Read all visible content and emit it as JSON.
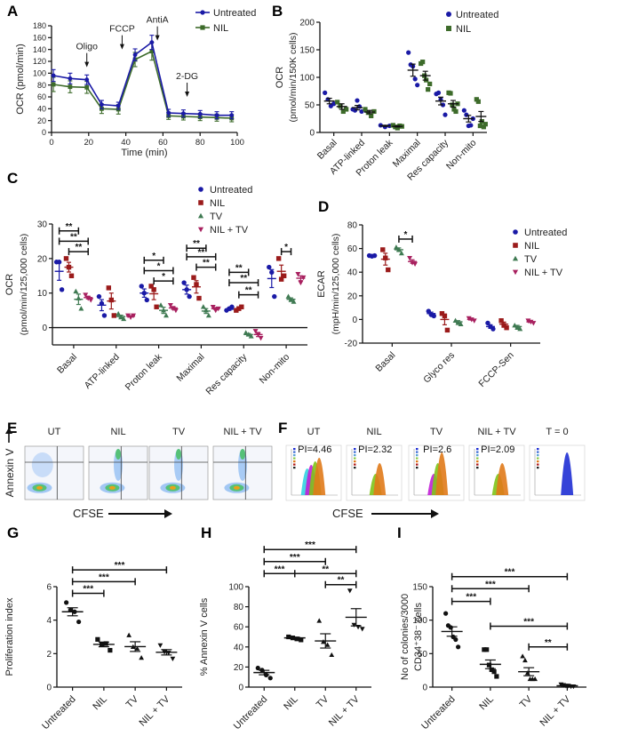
{
  "figure": {
    "panel_labels": [
      "A",
      "B",
      "C",
      "D",
      "E",
      "F",
      "G",
      "H",
      "I"
    ]
  },
  "colors": {
    "untreated": "#1a1aa6",
    "nil_green": "#3d6b2a",
    "nil_red": "#9b1b1b",
    "tv": "#3f7a52",
    "nil_tv": "#a8205f",
    "black": "#111111"
  },
  "chart_data": [
    {
      "id": "A",
      "type": "line",
      "xlabel": "Time (min)",
      "ylabel": "OCR (pmol/min)",
      "xlim": [
        0,
        100
      ],
      "ylim": [
        0,
        180
      ],
      "xticks": [
        0,
        20,
        40,
        60,
        80,
        100
      ],
      "yticks": [
        0,
        20,
        40,
        60,
        80,
        100,
        120,
        140,
        160,
        180
      ],
      "x": [
        1,
        10,
        19,
        27,
        36,
        45,
        54,
        63,
        71,
        80,
        89,
        97
      ],
      "series": [
        {
          "name": "Untreated",
          "color_key": "untreated",
          "marker": "circle",
          "values": [
            96,
            91,
            89,
            47,
            45,
            131,
            152,
            33,
            32,
            31,
            29,
            29
          ],
          "errors": [
            10,
            9,
            8,
            7,
            6,
            10,
            12,
            6,
            6,
            6,
            6,
            6
          ]
        },
        {
          "name": "NIL",
          "color_key": "nil_green",
          "marker": "square",
          "values": [
            81,
            77,
            76,
            40,
            39,
            123,
            137,
            28,
            27,
            26,
            25,
            24
          ],
          "errors": [
            12,
            10,
            10,
            8,
            8,
            12,
            15,
            6,
            6,
            6,
            6,
            6
          ]
        }
      ],
      "annotations": [
        {
          "text": "Oligo",
          "x": 19,
          "arrow_to": 110
        },
        {
          "text": "FCCP",
          "x": 38,
          "arrow_to": 140
        },
        {
          "text": "AntiA",
          "x": 57,
          "arrow_to": 155
        },
        {
          "text": "2-DG",
          "x": 73,
          "arrow_to": 60
        }
      ],
      "legend": {
        "position": "top-right",
        "entries": [
          "Untreated",
          "NIL"
        ]
      }
    },
    {
      "id": "B",
      "type": "scatter",
      "ylabel": "OCR",
      "ylabel2": "(pmol/min/150K cells)",
      "ylim": [
        0,
        200
      ],
      "yticks": [
        0,
        50,
        100,
        150,
        200
      ],
      "categories": [
        "Basal",
        "ATP-linked",
        "Proton leak",
        "Maximal",
        "Res capacity",
        "Non-mito"
      ],
      "series": [
        {
          "name": "Untreated",
          "color_key": "untreated",
          "marker": "circle",
          "points": [
            [
              72,
              60,
              48,
              52
            ],
            [
              42,
              40,
              58,
              47,
              38
            ],
            [
              13,
              10,
              12
            ],
            [
              145,
              123,
              120,
              97,
              86
            ],
            [
              70,
              72,
              60,
              50,
              32
            ],
            [
              40,
              32,
              12,
              13,
              25
            ]
          ],
          "mean": [
            57,
            45,
            12,
            113,
            57,
            25
          ],
          "sem": [
            5,
            4,
            1,
            11,
            7,
            6
          ]
        },
        {
          "name": "NIL",
          "color_key": "nil_green",
          "marker": "square",
          "points": [
            [
              55,
              48,
              38,
              42
            ],
            [
              42,
              36,
              30,
              38
            ],
            [
              13,
              10,
              8,
              12,
              11
            ],
            [
              125,
              128,
              103,
              95,
              78,
              88
            ],
            [
              72,
              71,
              50,
              42,
              38,
              52
            ],
            [
              60,
              56,
              12,
              20,
              10,
              15
            ]
          ],
          "mean": [
            47,
            37,
            11,
            103,
            52,
            29
          ],
          "sem": [
            5,
            3,
            1,
            8,
            6,
            9
          ]
        }
      ],
      "legend": {
        "position": "top-right",
        "entries": [
          "Untreated",
          "NIL"
        ]
      }
    },
    {
      "id": "C",
      "type": "scatter",
      "ylabel": "OCR",
      "ylabel2": "(pmol/min/125,000 cells)",
      "ylim": [
        -5,
        30
      ],
      "yticks": [
        0,
        10,
        20,
        30
      ],
      "categories": [
        "Basal",
        "ATP-linked",
        "Proton leak",
        "Maximal",
        "Res capacity",
        "Non-mito"
      ],
      "series": [
        {
          "name": "Untreated",
          "color_key": "untreated",
          "marker": "circle",
          "points": [
            [
              19,
              19,
              11
            ],
            [
              9,
              7,
              3.5
            ],
            [
              12,
              10,
              8
            ],
            [
              13,
              11,
              9
            ],
            [
              5,
              5.5,
              6
            ],
            [
              17.5,
              16,
              9
            ]
          ],
          "mean": [
            16.3,
            6.5,
            10,
            11,
            5.3,
            14.2
          ],
          "sem": [
            2.6,
            1.6,
            1.2,
            1.3,
            0.3,
            2.6
          ]
        },
        {
          "name": "NIL",
          "color_key": "nil_red",
          "marker": "square",
          "points": [
            [
              20,
              17.5,
              15
            ],
            [
              11.5,
              8,
              3.5
            ],
            [
              12,
              11,
              6
            ],
            [
              14.5,
              12.5,
              8.5
            ],
            [
              5,
              5.5,
              6
            ],
            [
              20,
              14,
              15
            ]
          ],
          "mean": [
            17.5,
            7.7,
            9.8,
            11.8,
            5.5,
            16.3
          ],
          "sem": [
            1.4,
            2.3,
            1.7,
            1.8,
            0.3,
            1.8
          ]
        },
        {
          "name": "TV",
          "color_key": "tv",
          "marker": "triangle",
          "points": [
            [
              10.5,
              8.5,
              5.5
            ],
            [
              4,
              3,
              2.5
            ],
            [
              6.5,
              5,
              3.5
            ],
            [
              6,
              5,
              3.5
            ],
            [
              -1.5,
              -2,
              -2.5
            ],
            [
              9,
              8,
              7.5
            ]
          ],
          "mean": [
            8.2,
            3.2,
            5,
            4.8,
            -2,
            8.2
          ],
          "sem": [
            1.5,
            0.4,
            0.9,
            0.7,
            0.3,
            0.4
          ]
        },
        {
          "name": "NIL + TV",
          "color_key": "nil_tv",
          "marker": "triangle-down",
          "points": [
            [
              9.5,
              8.5,
              8
            ],
            [
              3.5,
              3,
              3.5
            ],
            [
              6.5,
              5.5,
              5
            ],
            [
              6,
              5,
              5.5
            ],
            [
              -1,
              -2,
              -3
            ],
            [
              15.5,
              13,
              14.5
            ]
          ],
          "mean": [
            8.7,
            3.3,
            5.7,
            5.5,
            -2,
            14.3
          ],
          "sem": [
            0.4,
            0.2,
            0.4,
            0.3,
            0.6,
            0.7
          ]
        }
      ],
      "significance": [
        {
          "cat": 0,
          "from": 0,
          "to": 2,
          "level": 28,
          "label": "**"
        },
        {
          "cat": 0,
          "from": 0,
          "to": 3,
          "level": 25,
          "label": "**"
        },
        {
          "cat": 0,
          "from": 1,
          "to": 3,
          "level": 22,
          "label": "**"
        },
        {
          "cat": 2,
          "from": 0,
          "to": 2,
          "level": 19.5,
          "label": "*"
        },
        {
          "cat": 2,
          "from": 0,
          "to": 3,
          "level": 16.5,
          "label": "*"
        },
        {
          "cat": 2,
          "from": 1,
          "to": 3,
          "level": 13.5,
          "label": "*"
        },
        {
          "cat": 3,
          "from": 0,
          "to": 2,
          "level": 23,
          "label": "**"
        },
        {
          "cat": 3,
          "from": 0,
          "to": 3,
          "level": 20.5,
          "label": "**"
        },
        {
          "cat": 3,
          "from": 1,
          "to": 3,
          "level": 17.5,
          "label": "**"
        },
        {
          "cat": 4,
          "from": 0,
          "to": 2,
          "level": 16,
          "label": "**"
        },
        {
          "cat": 4,
          "from": 0,
          "to": 3,
          "level": 13,
          "label": "**"
        },
        {
          "cat": 4,
          "from": 1,
          "to": 3,
          "level": 9.5,
          "label": "**"
        },
        {
          "cat": 5,
          "from": 1,
          "to": 2,
          "level": 22,
          "label": "*"
        }
      ],
      "legend": {
        "position": "top-right",
        "entries": [
          "Untreated",
          "NIL",
          "TV",
          "NIL + TV"
        ]
      }
    },
    {
      "id": "D",
      "type": "scatter",
      "ylabel": "ECAR",
      "ylabel2": "(mpH/min/125,000 cells)",
      "ylim": [
        -20,
        80
      ],
      "yticks": [
        -20,
        0,
        20,
        40,
        60,
        80
      ],
      "categories": [
        "Basal",
        "Glyco res",
        "FCCP-Sen"
      ],
      "series": [
        {
          "name": "Untreated",
          "color_key": "untreated",
          "marker": "circle",
          "points": [
            [
              54,
              53.5,
              54
            ],
            [
              7,
              4,
              3
            ],
            [
              -3,
              -6,
              -8
            ]
          ],
          "mean": [
            54,
            5,
            -6
          ],
          "sem": [
            0.3,
            1.2,
            1.5
          ]
        },
        {
          "name": "NIL",
          "color_key": "nil_red",
          "marker": "square",
          "points": [
            [
              59,
              52,
              42
            ],
            [
              5,
              3,
              -9
            ],
            [
              -1,
              -5,
              -7
            ]
          ],
          "mean": [
            51,
            0,
            -4
          ],
          "sem": [
            5,
            4.5,
            1.8
          ]
        },
        {
          "name": "TV",
          "color_key": "tv",
          "marker": "triangle",
          "points": [
            [
              61,
              59,
              56
            ],
            [
              -1,
              -3,
              -4
            ],
            [
              -5,
              -7,
              -8
            ]
          ],
          "mean": [
            59,
            -2,
            -6
          ],
          "sem": [
            1.5,
            1,
            1
          ]
        },
        {
          "name": "NIL + TV",
          "color_key": "nil_tv",
          "marker": "triangle-down",
          "points": [
            [
              52,
              48,
              47
            ],
            [
              1,
              0,
              -1
            ],
            [
              -1,
              -2,
              -3
            ]
          ],
          "mean": [
            49,
            0,
            -2
          ],
          "sem": [
            1.5,
            0.5,
            0.5
          ]
        }
      ],
      "significance": [
        {
          "cat": 0,
          "from": 2,
          "to": 3,
          "level": 68,
          "label": "*"
        }
      ],
      "legend": {
        "position": "top-right",
        "entries": [
          "Untreated",
          "NIL",
          "TV",
          "NIL + TV"
        ]
      }
    },
    {
      "id": "G",
      "type": "scatter",
      "ylabel": "Proliferation index",
      "ylim": [
        0,
        6
      ],
      "yticks": [
        0,
        2,
        4,
        6
      ],
      "categories": [
        "Untreated",
        "NIL",
        "TV",
        "NIL + TV"
      ],
      "markers": [
        "circle",
        "square",
        "triangle",
        "triangle-down"
      ],
      "points": [
        [
          5.05,
          4.6,
          4.5,
          3.9
        ],
        [
          2.85,
          2.55,
          2.6,
          2.2
        ],
        [
          3.1,
          2.4,
          2.3,
          1.75
        ],
        [
          2.5,
          2.1,
          2.05,
          1.7
        ]
      ],
      "mean": [
        4.5,
        2.55,
        2.42,
        2.08
      ],
      "sem": [
        0.24,
        0.14,
        0.29,
        0.16
      ],
      "significance": [
        {
          "from": 0,
          "to": 1,
          "level": 5.6,
          "label": "***"
        },
        {
          "from": 0,
          "to": 2,
          "level": 6.3,
          "label": "***"
        },
        {
          "from": 0,
          "to": 3,
          "level": 7.0,
          "label": "***"
        }
      ]
    },
    {
      "id": "H",
      "type": "scatter",
      "ylabel": "% Annexin V cells",
      "ylim": [
        0,
        100
      ],
      "yticks": [
        0,
        20,
        40,
        60,
        80,
        100
      ],
      "categories": [
        "Untreated",
        "NIL",
        "TV",
        "NIL + TV"
      ],
      "markers": [
        "circle",
        "square",
        "triangle",
        "triangle-down"
      ],
      "points": [
        [
          19,
          17,
          12,
          9
        ],
        [
          50,
          49,
          48,
          47
        ],
        [
          66,
          45,
          42,
          32
        ],
        [
          96,
          62,
          60,
          58
        ]
      ],
      "mean": [
        14.5,
        49,
        46,
        69.5
      ],
      "sem": [
        2.2,
        0.6,
        7.1,
        8.6
      ],
      "significance": [
        {
          "from": 0,
          "to": 3,
          "level": 137,
          "label": "***"
        },
        {
          "from": 0,
          "to": 2,
          "level": 125,
          "label": "***"
        },
        {
          "from": 0,
          "to": 1,
          "level": 113,
          "label": "***"
        },
        {
          "from": 1,
          "to": 3,
          "level": 113,
          "label": "**"
        },
        {
          "from": 2,
          "to": 3,
          "level": 102,
          "label": "**"
        }
      ]
    },
    {
      "id": "I",
      "type": "scatter",
      "ylabel": "No of colonies/3000",
      "ylabel2": "CD34⁺38⁻ cells",
      "ylim": [
        0,
        150
      ],
      "yticks": [
        0,
        50,
        100,
        150
      ],
      "categories": [
        "Untreated",
        "NIL",
        "TV",
        "NIL + TV"
      ],
      "markers": [
        "circle",
        "square",
        "triangle",
        "triangle-down"
      ],
      "points": [
        [
          110,
          92,
          89,
          75,
          71,
          60
        ],
        [
          56,
          56,
          33,
          26,
          23,
          16
        ],
        [
          46,
          40,
          21,
          12,
          12,
          12
        ],
        [
          4,
          3,
          2,
          2,
          1,
          1
        ]
      ],
      "mean": [
        83,
        34,
        23,
        2
      ],
      "sem": [
        7,
        6.5,
        6,
        0.6
      ],
      "significance": [
        {
          "from": 0,
          "to": 1,
          "level": 128,
          "label": "***"
        },
        {
          "from": 0,
          "to": 2,
          "level": 147,
          "label": "***"
        },
        {
          "from": 0,
          "to": 3,
          "level": 165,
          "label": "***"
        },
        {
          "from": 1,
          "to": 3,
          "level": 91,
          "label": "***"
        },
        {
          "from": 2,
          "to": 3,
          "level": 60,
          "label": "**"
        }
      ]
    }
  ],
  "panel_e": {
    "titles": [
      "UT",
      "NIL",
      "TV",
      "NIL + TV"
    ],
    "yaxis_label": "Annexin V",
    "xaxis_label": "CFSE"
  },
  "panel_f": {
    "titles": [
      "UT",
      "NIL",
      "TV",
      "NIL + TV",
      "T = 0"
    ],
    "pi_labels": [
      "PI=4.46",
      "PI=2.32",
      "PI=2.6",
      "PI=2.09",
      ""
    ],
    "xaxis_label": "CFSE"
  }
}
